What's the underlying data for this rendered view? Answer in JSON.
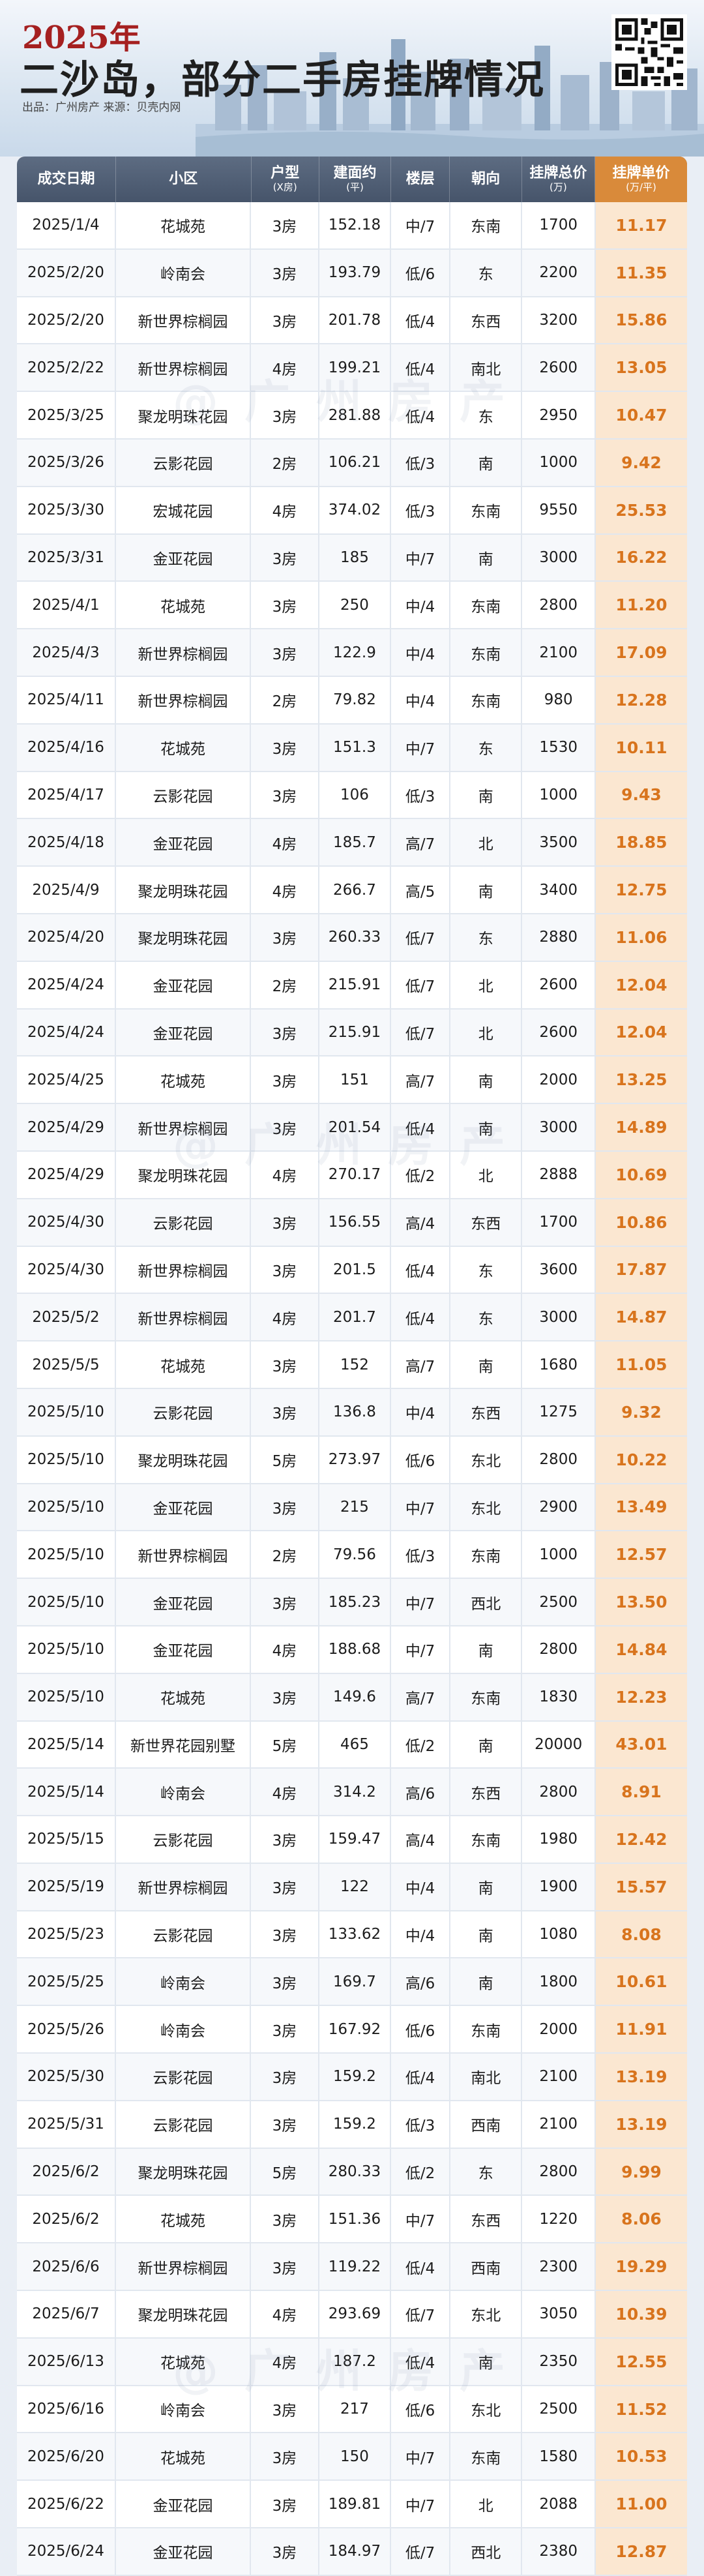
{
  "header": {
    "year": "2025年",
    "title": "二沙岛，部分二手房挂牌情况",
    "source": "出品：广州房产 来源：贝壳内网"
  },
  "watermark": "@广州房产",
  "table": {
    "columns": [
      {
        "label": "成交日期",
        "sub": ""
      },
      {
        "label": "小区",
        "sub": ""
      },
      {
        "label": "户型",
        "sub": "(X房)"
      },
      {
        "label": "建面约",
        "sub": "(平)"
      },
      {
        "label": "楼层",
        "sub": ""
      },
      {
        "label": "朝向",
        "sub": ""
      },
      {
        "label": "挂牌总价",
        "sub": "(万)"
      },
      {
        "label": "挂牌单价",
        "sub": "(万/平)"
      }
    ],
    "rows": [
      [
        "2025/1/4",
        "花城苑",
        "3房",
        "152.18",
        "中/7",
        "东南",
        "1700",
        "11.17"
      ],
      [
        "2025/2/20",
        "岭南会",
        "3房",
        "193.79",
        "低/6",
        "东",
        "2200",
        "11.35"
      ],
      [
        "2025/2/20",
        "新世界棕榈园",
        "3房",
        "201.78",
        "低/4",
        "东西",
        "3200",
        "15.86"
      ],
      [
        "2025/2/22",
        "新世界棕榈园",
        "4房",
        "199.21",
        "低/4",
        "南北",
        "2600",
        "13.05"
      ],
      [
        "2025/3/25",
        "聚龙明珠花园",
        "3房",
        "281.88",
        "低/4",
        "东",
        "2950",
        "10.47"
      ],
      [
        "2025/3/26",
        "云影花园",
        "2房",
        "106.21",
        "低/3",
        "南",
        "1000",
        "9.42"
      ],
      [
        "2025/3/30",
        "宏城花园",
        "4房",
        "374.02",
        "低/3",
        "东南",
        "9550",
        "25.53"
      ],
      [
        "2025/3/31",
        "金亚花园",
        "3房",
        "185",
        "中/7",
        "南",
        "3000",
        "16.22"
      ],
      [
        "2025/4/1",
        "花城苑",
        "3房",
        "250",
        "中/4",
        "东南",
        "2800",
        "11.20"
      ],
      [
        "2025/4/3",
        "新世界棕榈园",
        "3房",
        "122.9",
        "中/4",
        "东南",
        "2100",
        "17.09"
      ],
      [
        "2025/4/11",
        "新世界棕榈园",
        "2房",
        "79.82",
        "中/4",
        "东南",
        "980",
        "12.28"
      ],
      [
        "2025/4/16",
        "花城苑",
        "3房",
        "151.3",
        "中/7",
        "东",
        "1530",
        "10.11"
      ],
      [
        "2025/4/17",
        "云影花园",
        "3房",
        "106",
        "低/3",
        "南",
        "1000",
        "9.43"
      ],
      [
        "2025/4/18",
        "金亚花园",
        "4房",
        "185.7",
        "高/7",
        "北",
        "3500",
        "18.85"
      ],
      [
        "2025/4/9",
        "聚龙明珠花园",
        "4房",
        "266.7",
        "高/5",
        "南",
        "3400",
        "12.75"
      ],
      [
        "2025/4/20",
        "聚龙明珠花园",
        "3房",
        "260.33",
        "低/7",
        "东",
        "2880",
        "11.06"
      ],
      [
        "2025/4/24",
        "金亚花园",
        "2房",
        "215.91",
        "低/7",
        "北",
        "2600",
        "12.04"
      ],
      [
        "2025/4/24",
        "金亚花园",
        "3房",
        "215.91",
        "低/7",
        "北",
        "2600",
        "12.04"
      ],
      [
        "2025/4/25",
        "花城苑",
        "3房",
        "151",
        "高/7",
        "南",
        "2000",
        "13.25"
      ],
      [
        "2025/4/29",
        "新世界棕榈园",
        "3房",
        "201.54",
        "低/4",
        "南",
        "3000",
        "14.89"
      ],
      [
        "2025/4/29",
        "聚龙明珠花园",
        "4房",
        "270.17",
        "低/2",
        "北",
        "2888",
        "10.69"
      ],
      [
        "2025/4/30",
        "云影花园",
        "3房",
        "156.55",
        "高/4",
        "东西",
        "1700",
        "10.86"
      ],
      [
        "2025/4/30",
        "新世界棕榈园",
        "3房",
        "201.5",
        "低/4",
        "东",
        "3600",
        "17.87"
      ],
      [
        "2025/5/2",
        "新世界棕榈园",
        "4房",
        "201.7",
        "低/4",
        "东",
        "3000",
        "14.87"
      ],
      [
        "2025/5/5",
        "花城苑",
        "3房",
        "152",
        "高/7",
        "南",
        "1680",
        "11.05"
      ],
      [
        "2025/5/10",
        "云影花园",
        "3房",
        "136.8",
        "中/4",
        "东西",
        "1275",
        "9.32"
      ],
      [
        "2025/5/10",
        "聚龙明珠花园",
        "5房",
        "273.97",
        "低/6",
        "东北",
        "2800",
        "10.22"
      ],
      [
        "2025/5/10",
        "金亚花园",
        "3房",
        "215",
        "中/7",
        "东北",
        "2900",
        "13.49"
      ],
      [
        "2025/5/10",
        "新世界棕榈园",
        "2房",
        "79.56",
        "低/3",
        "东南",
        "1000",
        "12.57"
      ],
      [
        "2025/5/10",
        "金亚花园",
        "3房",
        "185.23",
        "中/7",
        "西北",
        "2500",
        "13.50"
      ],
      [
        "2025/5/10",
        "金亚花园",
        "4房",
        "188.68",
        "中/7",
        "南",
        "2800",
        "14.84"
      ],
      [
        "2025/5/10",
        "花城苑",
        "3房",
        "149.6",
        "高/7",
        "东南",
        "1830",
        "12.23"
      ],
      [
        "2025/5/14",
        "新世界花园别墅",
        "5房",
        "465",
        "低/2",
        "南",
        "20000",
        "43.01"
      ],
      [
        "2025/5/14",
        "岭南会",
        "4房",
        "314.2",
        "高/6",
        "东西",
        "2800",
        "8.91"
      ],
      [
        "2025/5/15",
        "云影花园",
        "3房",
        "159.47",
        "高/4",
        "东南",
        "1980",
        "12.42"
      ],
      [
        "2025/5/19",
        "新世界棕榈园",
        "3房",
        "122",
        "中/4",
        "南",
        "1900",
        "15.57"
      ],
      [
        "2025/5/23",
        "云影花园",
        "3房",
        "133.62",
        "中/4",
        "南",
        "1080",
        "8.08"
      ],
      [
        "2025/5/25",
        "岭南会",
        "3房",
        "169.7",
        "高/6",
        "南",
        "1800",
        "10.61"
      ],
      [
        "2025/5/26",
        "岭南会",
        "3房",
        "167.92",
        "低/6",
        "东南",
        "2000",
        "11.91"
      ],
      [
        "2025/5/30",
        "云影花园",
        "3房",
        "159.2",
        "低/4",
        "南北",
        "2100",
        "13.19"
      ],
      [
        "2025/5/31",
        "云影花园",
        "3房",
        "159.2",
        "低/3",
        "西南",
        "2100",
        "13.19"
      ],
      [
        "2025/6/2",
        "聚龙明珠花园",
        "5房",
        "280.33",
        "低/2",
        "东",
        "2800",
        "9.99"
      ],
      [
        "2025/6/2",
        "花城苑",
        "3房",
        "151.36",
        "中/7",
        "东西",
        "1220",
        "8.06"
      ],
      [
        "2025/6/6",
        "新世界棕榈园",
        "3房",
        "119.22",
        "低/4",
        "西南",
        "2300",
        "19.29"
      ],
      [
        "2025/6/7",
        "聚龙明珠花园",
        "4房",
        "293.69",
        "低/7",
        "东北",
        "3050",
        "10.39"
      ],
      [
        "2025/6/13",
        "花城苑",
        "4房",
        "187.2",
        "低/4",
        "南",
        "2350",
        "12.55"
      ],
      [
        "2025/6/16",
        "岭南会",
        "3房",
        "217",
        "低/6",
        "东北",
        "2500",
        "11.52"
      ],
      [
        "2025/6/20",
        "花城苑",
        "3房",
        "150",
        "中/7",
        "东南",
        "1580",
        "10.53"
      ],
      [
        "2025/6/22",
        "金亚花园",
        "3房",
        "189.81",
        "中/7",
        "北",
        "2088",
        "11.00"
      ],
      [
        "2025/6/24",
        "金亚花园",
        "3房",
        "184.97",
        "低/7",
        "西北",
        "2380",
        "12.87"
      ]
    ]
  }
}
